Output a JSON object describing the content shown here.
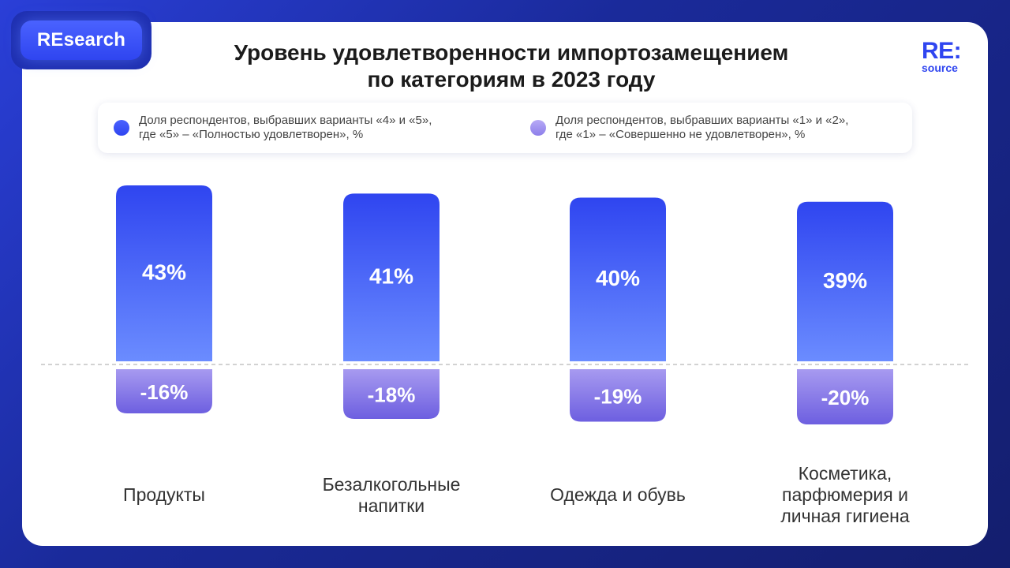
{
  "badge": "REsearch",
  "title_line1": "Уровень удовлетворенности импортозамещением",
  "title_line2": "по категориям в 2023 году",
  "logo": {
    "line1": "RE:",
    "line2": "source"
  },
  "colors": {
    "positive_top": "#2f45f0",
    "positive_bottom": "#6b8cff",
    "negative_top": "#a79af0",
    "negative_bottom": "#6d5fe0"
  },
  "chart_data": {
    "type": "bar",
    "title": "Уровень удовлетворенности импортозамещением по категориям в 2023 году",
    "categories": [
      "Продукты",
      "Безалкогольные напитки",
      "Одежда и обувь",
      "Косметика, парфюмерия и личная гигиена"
    ],
    "series": [
      {
        "name": "Доля респондентов, выбравших варианты «4» и «5», где «5» – «Полностью удовлетворен», %",
        "values": [
          43,
          41,
          40,
          39
        ]
      },
      {
        "name": "Доля респондентов, выбравших варианты «1» и «2», где «1» – «Совершенно не удовлетворен», %",
        "values": [
          -16,
          -18,
          -19,
          -20
        ]
      }
    ],
    "data_labels_positive": [
      "43%",
      "41%",
      "40%",
      "39%"
    ],
    "data_labels_negative": [
      "-16%",
      "-18%",
      "-19%",
      "-20%"
    ],
    "legend_lines": [
      [
        "Доля респондентов, выбравших варианты «4» и «5»,",
        "где «5» – «Полностью удовлетворен», %"
      ],
      [
        "Доля респондентов, выбравших варианты «1» и «2»,",
        "где «1» – «Совершенно не удовлетворен», %"
      ]
    ],
    "category_lines": [
      [
        "Продукты"
      ],
      [
        "Безалкогольные",
        "напитки"
      ],
      [
        "Одежда и обувь"
      ],
      [
        "Косметика,",
        "парфюмерия и",
        "личная гигиена"
      ]
    ],
    "ylim": [
      -20,
      43
    ],
    "legend_position": "top",
    "grid": false
  }
}
